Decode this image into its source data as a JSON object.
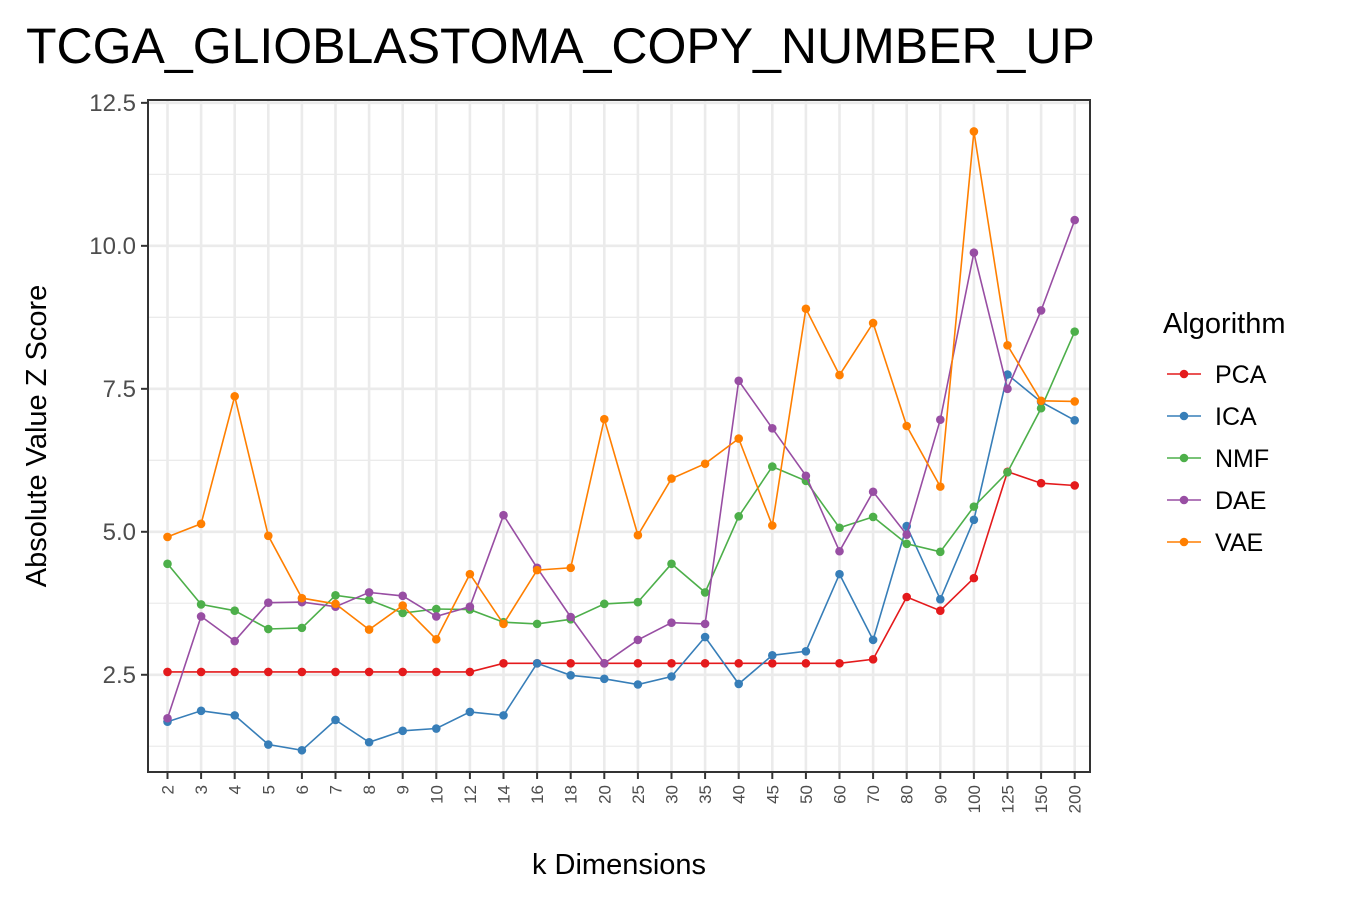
{
  "chart_data": {
    "type": "line",
    "title": "TCGA_GLIOBLASTOMA_COPY_NUMBER_UP",
    "xlabel": "k Dimensions",
    "ylabel": "Absolute Value Z Score",
    "categories": [
      "2",
      "3",
      "4",
      "5",
      "6",
      "7",
      "8",
      "9",
      "10",
      "12",
      "14",
      "16",
      "18",
      "20",
      "25",
      "30",
      "35",
      "40",
      "45",
      "50",
      "60",
      "70",
      "80",
      "90",
      "100",
      "125",
      "150",
      "200"
    ],
    "ylim": [
      0.8,
      12.55
    ],
    "yticks": [
      "2.5",
      "5.0",
      "7.5",
      "10.0",
      "12.5"
    ],
    "grid": true,
    "legend": {
      "title": "Algorithm",
      "position": "right"
    },
    "series": [
      {
        "name": "PCA",
        "color": "#e41a1c",
        "values": [
          2.55,
          2.55,
          2.55,
          2.55,
          2.55,
          2.55,
          2.55,
          2.55,
          2.55,
          2.55,
          2.7,
          2.7,
          2.7,
          2.7,
          2.7,
          2.7,
          2.7,
          2.7,
          2.7,
          2.7,
          2.7,
          2.77,
          3.86,
          3.62,
          4.19,
          6.05,
          5.85,
          5.81
        ]
      },
      {
        "name": "ICA",
        "color": "#377eb8",
        "values": [
          1.68,
          1.87,
          1.79,
          1.28,
          1.18,
          1.71,
          1.32,
          1.52,
          1.56,
          1.85,
          1.79,
          2.7,
          2.49,
          2.43,
          2.33,
          2.47,
          3.16,
          2.34,
          2.84,
          2.91,
          4.26,
          3.11,
          5.1,
          3.82,
          5.21,
          7.75,
          7.27,
          6.95
        ]
      },
      {
        "name": "NMF",
        "color": "#4daf4a",
        "values": [
          4.44,
          3.73,
          3.62,
          3.3,
          3.32,
          3.89,
          3.81,
          3.58,
          3.65,
          3.64,
          3.42,
          3.39,
          3.47,
          3.74,
          3.77,
          4.44,
          3.94,
          5.27,
          6.14,
          5.89,
          5.07,
          5.26,
          4.79,
          4.65,
          5.44,
          6.04,
          7.16,
          8.5
        ]
      },
      {
        "name": "DAE",
        "color": "#984ea3",
        "values": [
          1.74,
          3.52,
          3.09,
          3.76,
          3.77,
          3.69,
          3.94,
          3.88,
          3.52,
          3.69,
          5.29,
          4.37,
          3.51,
          2.7,
          3.11,
          3.41,
          3.39,
          7.64,
          6.81,
          5.98,
          4.66,
          5.7,
          4.95,
          6.96,
          9.88,
          7.5,
          8.87,
          10.45
        ]
      },
      {
        "name": "VAE",
        "color": "#ff7f00",
        "values": [
          4.91,
          5.14,
          7.37,
          4.93,
          3.84,
          3.74,
          3.29,
          3.71,
          3.12,
          4.26,
          3.39,
          4.33,
          4.37,
          6.97,
          4.94,
          5.93,
          6.19,
          6.63,
          5.11,
          8.9,
          7.74,
          8.65,
          6.85,
          5.79,
          12.0,
          8.26,
          7.29,
          7.28
        ]
      }
    ]
  }
}
